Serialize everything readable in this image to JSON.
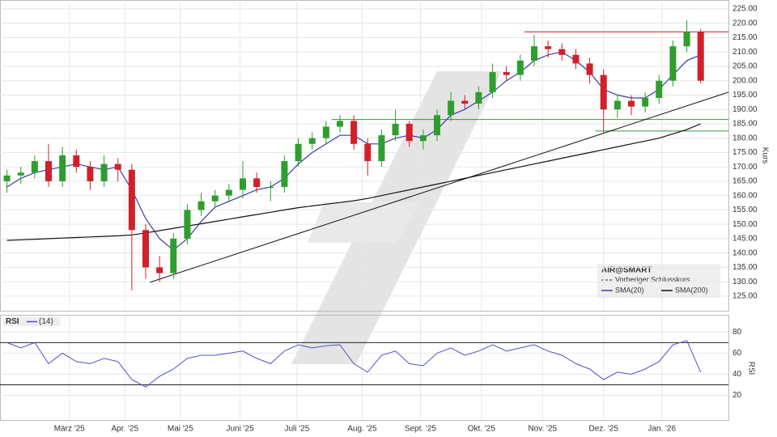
{
  "chart_data": {
    "type": "candlestick",
    "title": "AIR@SMART",
    "y_label": "Kurs",
    "x": [
      0,
      1,
      2,
      3,
      4,
      5,
      6,
      7,
      8,
      9,
      10,
      11,
      12,
      13,
      14,
      15,
      16,
      17,
      18,
      19,
      20,
      21,
      22,
      23,
      24,
      25,
      26,
      27,
      28,
      29,
      30,
      31,
      32,
      33,
      34,
      35,
      36,
      37,
      38,
      39,
      40,
      41,
      42,
      43,
      44,
      45,
      46,
      47,
      48,
      49,
      50
    ],
    "open": [
      165,
      167,
      168,
      172,
      165,
      174,
      170,
      165,
      171,
      169,
      148,
      135,
      133,
      145,
      155,
      158,
      160,
      162,
      166,
      163,
      163,
      172,
      178,
      180,
      184,
      186,
      178,
      172,
      181,
      185,
      179,
      181,
      188,
      193,
      192,
      196,
      203,
      202,
      207,
      212,
      211,
      209,
      206,
      202,
      190,
      193,
      191,
      194,
      200,
      212,
      217
    ],
    "high": [
      169,
      170,
      174,
      178,
      177,
      176,
      172,
      174,
      173,
      171,
      150,
      139,
      147,
      157,
      161,
      162,
      164,
      172,
      168,
      165,
      174,
      180,
      182,
      186,
      188,
      188,
      180,
      183,
      190,
      186,
      183,
      190,
      196,
      195,
      198,
      206,
      205,
      209,
      216,
      214,
      213,
      211,
      208,
      204,
      195,
      195,
      196,
      202,
      214,
      221,
      218
    ],
    "low": [
      161,
      164,
      166,
      163,
      163,
      168,
      162,
      163,
      165,
      127,
      131,
      130,
      131,
      143,
      153,
      156,
      158,
      159,
      161,
      158,
      161,
      170,
      176,
      178,
      182,
      176,
      167,
      170,
      179,
      177,
      176,
      179,
      186,
      190,
      190,
      194,
      200,
      200,
      205,
      208,
      207,
      204,
      199,
      182,
      187,
      188,
      189,
      192,
      198,
      210,
      199
    ],
    "close": [
      167,
      168,
      172,
      165,
      174,
      170,
      165,
      171,
      169,
      148,
      135,
      133,
      145,
      155,
      158,
      160,
      162,
      166,
      163,
      163,
      172,
      178,
      180,
      184,
      186,
      178,
      172,
      181,
      185,
      179,
      181,
      188,
      193,
      192,
      196,
      203,
      202,
      207,
      212,
      211,
      209,
      206,
      202,
      190,
      193,
      191,
      194,
      200,
      212,
      217,
      200
    ],
    "up_color": "#2e9e2e",
    "down_color": "#d0202a",
    "series": [
      {
        "name": "SMA(20)",
        "color": "#3c3ca8",
        "values": [
          163,
          166,
          168,
          169,
          170,
          171,
          170,
          169,
          170,
          162,
          152,
          145,
          141,
          145,
          151,
          156,
          158,
          160,
          162,
          163,
          166,
          171,
          175,
          178,
          181,
          181,
          178,
          178,
          180,
          181,
          180,
          183,
          188,
          190,
          193,
          196,
          200,
          203,
          207,
          209,
          210,
          207,
          203,
          197,
          195,
          194,
          194,
          197,
          202,
          207,
          209
        ]
      },
      {
        "name": "SMA(200)",
        "color": "#111111",
        "values": [
          144.4,
          144.6,
          144.8,
          145,
          145.2,
          145.4,
          145.6,
          145.8,
          146,
          146.3,
          147,
          147.8,
          148.6,
          149.4,
          150.2,
          151,
          151.8,
          152.6,
          153.4,
          154.2,
          155,
          155.8,
          156.4,
          157,
          157.6,
          158.2,
          159,
          160,
          161,
          162,
          163,
          164,
          165,
          166,
          167,
          168,
          169,
          170,
          171,
          172,
          173,
          174,
          175,
          176,
          177,
          178,
          179,
          180,
          181.5,
          183,
          185
        ]
      }
    ],
    "legend_prev_close": "Vorheriger Schlusskurs",
    "trendlines": [
      {
        "color": "#d0202a",
        "x": [
          37.3,
          52
        ],
        "y": [
          217,
          217
        ]
      },
      {
        "color": "#2e9e2e",
        "x": [
          23.4,
          52
        ],
        "y": [
          186.5,
          186.5
        ]
      },
      {
        "color": "#2e9e2e",
        "x": [
          42.4,
          52
        ],
        "y": [
          182.5,
          182.5
        ]
      },
      {
        "color": "#111111",
        "x": [
          10.3,
          52
        ],
        "y": [
          129.8,
          196
        ]
      }
    ],
    "xlim": [
      -0.5,
      52
    ],
    "ylim": [
      119.9,
      228.1
    ],
    "xticks": [
      {
        "value": 4.5,
        "label": "März '25"
      },
      {
        "value": 8.5,
        "label": "Apr. '25"
      },
      {
        "value": 12.5,
        "label": "Mai '25"
      },
      {
        "value": 16.8,
        "label": "Juni '25"
      },
      {
        "value": 20.9,
        "label": "Juli '25"
      },
      {
        "value": 25.6,
        "label": "Aug. '25"
      },
      {
        "value": 29.8,
        "label": "Sept. '25"
      },
      {
        "value": 34.2,
        "label": "Okt. '25"
      },
      {
        "value": 38.6,
        "label": "Nov. '25"
      },
      {
        "value": 43,
        "label": "Dez. '25"
      },
      {
        "value": 47.2,
        "label": "Jan. '26"
      }
    ],
    "yticks": [
      {
        "value": 125,
        "label": "125.00"
      },
      {
        "value": 130,
        "label": "130.00"
      },
      {
        "value": 135,
        "label": "135.00"
      },
      {
        "value": 140,
        "label": "140.00"
      },
      {
        "value": 145,
        "label": "145.00"
      },
      {
        "value": 150,
        "label": "150.00"
      },
      {
        "value": 155,
        "label": "155.00"
      },
      {
        "value": 160,
        "label": "160.00"
      },
      {
        "value": 165,
        "label": "165.00"
      },
      {
        "value": 170,
        "label": "170.00"
      },
      {
        "value": 175,
        "label": "175.00"
      },
      {
        "value": 180,
        "label": "180.00"
      },
      {
        "value": 185,
        "label": "185.00"
      },
      {
        "value": 190,
        "label": "190.00"
      },
      {
        "value": 195,
        "label": "195.00"
      },
      {
        "value": 200,
        "label": "200.00"
      },
      {
        "value": 205,
        "label": "205.00"
      },
      {
        "value": 210,
        "label": "210.00"
      },
      {
        "value": 215,
        "label": "215.00"
      },
      {
        "value": 220,
        "label": "220.00"
      },
      {
        "value": 225,
        "label": "225.00"
      }
    ],
    "grid": true,
    "rsi": {
      "title": "RSI",
      "period": "(14)",
      "y_label": "RSI",
      "color": "#5050c8",
      "values": [
        70,
        65,
        70,
        50,
        60,
        52,
        50,
        55,
        52,
        35,
        28,
        38,
        45,
        55,
        58,
        58,
        60,
        62,
        55,
        50,
        62,
        68,
        65,
        67,
        68,
        50,
        42,
        58,
        62,
        50,
        48,
        60,
        65,
        58,
        62,
        68,
        62,
        65,
        68,
        62,
        58,
        50,
        45,
        35,
        42,
        40,
        45,
        52,
        68,
        72,
        42
      ],
      "levels": [
        70,
        30
      ],
      "ylim": [
        -3.4,
        96.4
      ],
      "yticks": [
        20,
        40,
        60,
        80
      ]
    }
  }
}
